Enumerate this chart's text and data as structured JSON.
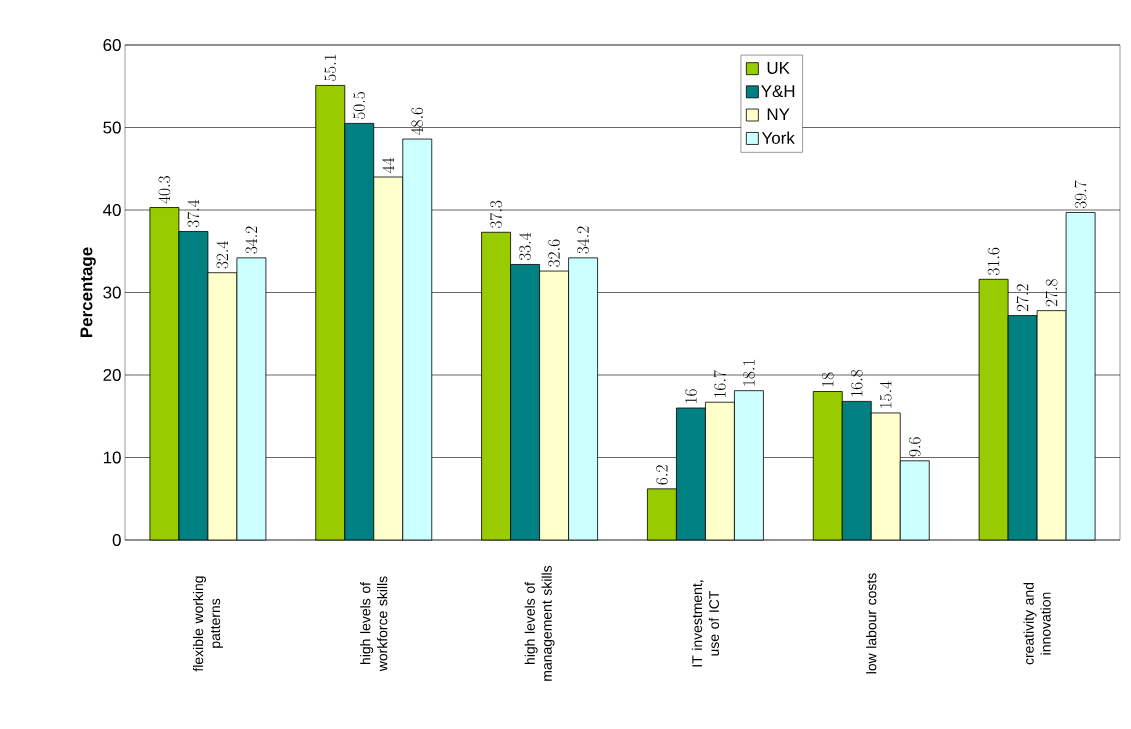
{
  "chart_data": {
    "type": "bar",
    "ylabel": "**Percentage**",
    "categories": [
      "flexible working patterns",
      "high levels of workforce skills",
      "high levels of management skills",
      "IT investment, use of ICT",
      "low labour costs",
      "creativity and innovation"
    ],
    "series": [
      {
        "name": "UK",
        "color": "#99cc00",
        "values": [
          40.3,
          55.1,
          37.3,
          6.2,
          18,
          31.6
        ]
      },
      {
        "name": "Y&H",
        "color": "#008080",
        "values": [
          37.4,
          50.5,
          33.4,
          16,
          16.8,
          27.2
        ]
      },
      {
        "name": "NY",
        "color": "#ffffcc",
        "values": [
          32.4,
          44,
          32.6,
          16.7,
          15.4,
          27.8
        ]
      },
      {
        "name": "York",
        "color": "#ccffff",
        "values": [
          34.2,
          48.6,
          34.2,
          18.1,
          9.6,
          39.7
        ]
      }
    ],
    "ylim": [
      0,
      60
    ],
    "yticks": [
      0,
      10,
      20,
      30,
      40,
      50,
      60
    ],
    "grid": "y",
    "legend": "top",
    "data_labels": true
  }
}
